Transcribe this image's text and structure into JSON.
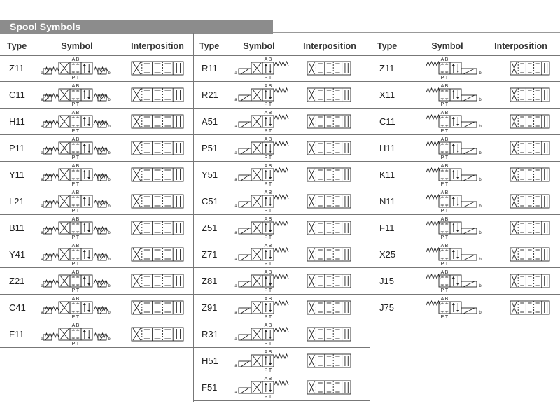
{
  "title": "Spool Symbols",
  "headers": {
    "type": "Type",
    "symbol": "Symbol",
    "interposition": "Interposition"
  },
  "ports": {
    "A": "A",
    "B": "B",
    "P": "P",
    "T": "T",
    "a": "a",
    "b": "b"
  },
  "columns": [
    {
      "actuation": "double-solenoid-spring-centered",
      "rows": [
        "Z11",
        "C11",
        "H11",
        "P11",
        "Y11",
        "L21",
        "B11",
        "Y41",
        "Z21",
        "C41",
        "F11"
      ]
    },
    {
      "actuation": "solenoid-a-spring-return",
      "rows": [
        "R11",
        "R21",
        "A51",
        "P51",
        "Y51",
        "C51",
        "Z51",
        "Z71",
        "Z81",
        "Z91",
        "R31",
        "H51",
        "F51"
      ]
    },
    {
      "actuation": "solenoid-b-spring-return",
      "rows": [
        "Z11",
        "X11",
        "C11",
        "H11",
        "K11",
        "N11",
        "F11",
        "X25",
        "J15",
        "J75"
      ]
    }
  ]
}
